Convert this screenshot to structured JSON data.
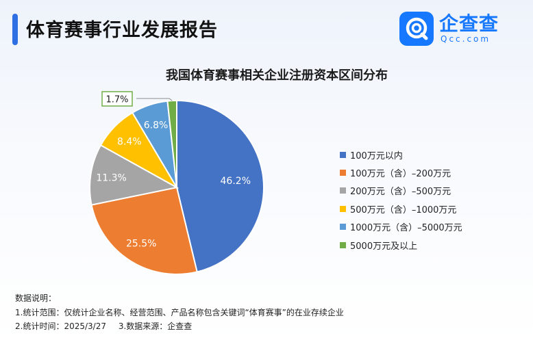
{
  "header": {
    "title": "体育赛事行业发展报告",
    "accent_color": "#2f6fe4"
  },
  "logo": {
    "name": "企查查",
    "domain": "Qcc.com",
    "icon": "qcc-logo-icon",
    "color": "#1677ff"
  },
  "chart_data": {
    "type": "pie",
    "title": "我国体育赛事相关企业注册资本区间分布",
    "categories": [
      "100万元以内",
      "100万元（含）–200万元",
      "200万元（含）–500万元",
      "500万元（含）–1000万元",
      "1000万元（含）–5000万元",
      "5000万元及以上"
    ],
    "values": [
      46.2,
      25.5,
      11.3,
      8.4,
      6.8,
      1.7
    ],
    "labels": [
      "46.2%",
      "25.5%",
      "11.3%",
      "8.4%",
      "6.8%",
      "1.7%"
    ],
    "colors": [
      "#4472c4",
      "#ed7d31",
      "#a5a5a5",
      "#ffc000",
      "#5b9bd5",
      "#70ad47"
    ],
    "unit": "%",
    "start": "12 o'clock",
    "direction": "clockwise",
    "legend_position": "right"
  },
  "notes": {
    "heading": "数据说明：",
    "scope": "1.统计范围：仅统计企业名称、经营范围、产品名称包含关键词“体育赛事”的在业存续企业",
    "time": "2.统计时间：2025/3/27",
    "source": "3.数据来源：企查查"
  }
}
